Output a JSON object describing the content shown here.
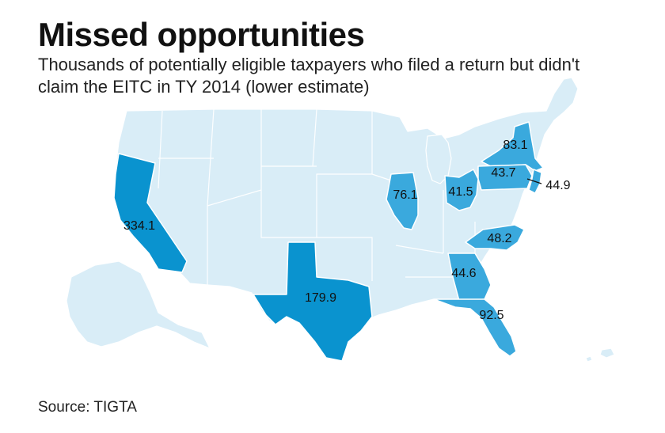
{
  "header": {
    "title": "Missed opportunities",
    "subtitle": "Thousands of potentially eligible taxpayers who filed a return but didn't claim the EITC in TY 2014 (lower estimate)"
  },
  "footer": {
    "source": "Source: TIGTA"
  },
  "colors": {
    "base_land": "#d9edf7",
    "highlight_dark": "#0a93cf",
    "highlight_mid": "#3aa9dd",
    "border": "#ffffff",
    "text": "#111111"
  },
  "chart_data": {
    "type": "map",
    "unit": "thousands",
    "states": [
      {
        "state": "California",
        "value": 334.1,
        "label": "334.1"
      },
      {
        "state": "Texas",
        "value": 179.9,
        "label": "179.9"
      },
      {
        "state": "Florida",
        "value": 92.5,
        "label": "92.5"
      },
      {
        "state": "New York",
        "value": 83.1,
        "label": "83.1"
      },
      {
        "state": "Illinois",
        "value": 76.1,
        "label": "76.1"
      },
      {
        "state": "North Carolina",
        "value": 48.2,
        "label": "48.2"
      },
      {
        "state": "New Jersey",
        "value": 44.9,
        "label": "44.9"
      },
      {
        "state": "Georgia",
        "value": 44.6,
        "label": "44.6"
      },
      {
        "state": "Pennsylvania",
        "value": 43.7,
        "label": "43.7"
      },
      {
        "state": "Ohio",
        "value": 41.5,
        "label": "41.5"
      }
    ]
  }
}
